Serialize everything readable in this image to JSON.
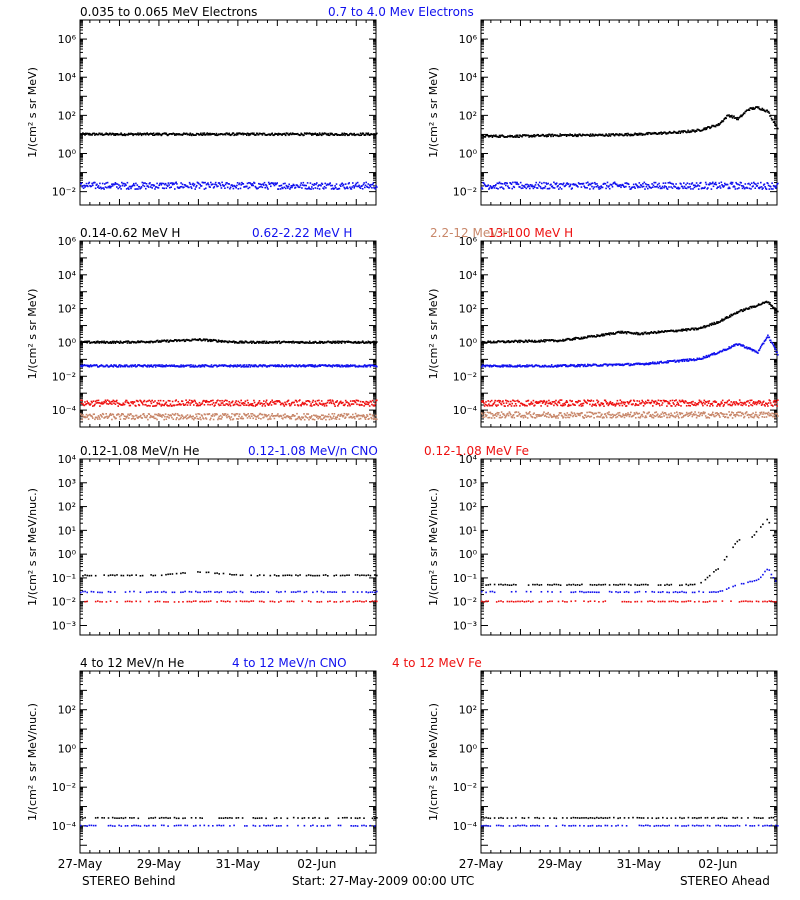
{
  "start_label": "Start: 27-May-2009 00:00 UTC",
  "left_footer": "STEREO Behind",
  "right_footer": "STEREO Ahead",
  "colors": {
    "black": "#000000",
    "blue": "#1010ee",
    "tan": "#c8876a",
    "red": "#ee1010"
  },
  "x_axis": {
    "range": [
      "2009-05-27T00:00",
      "2009-06-03T12:00"
    ],
    "tick_labels": [
      "27-May",
      "29-May",
      "31-May",
      "02-Jun"
    ],
    "tick_dates": [
      "2009-05-27",
      "2009-05-29",
      "2009-05-31",
      "2009-06-02"
    ]
  },
  "panel_groups": [
    {
      "legend": [
        {
          "text": "0.035 to 0.065 MeV Electrons",
          "color": "#000000"
        },
        {
          "text": "0.7 to 4.0 Mev Electrons",
          "color": "#1010ee"
        }
      ],
      "ylabel": "1/(cm² s sr MeV)",
      "yticks": [
        "10⁶",
        "10⁴",
        "10²",
        "10⁰",
        "10⁻²"
      ],
      "ytick_powers": [
        6,
        4,
        2,
        0,
        -2
      ]
    },
    {
      "legend": [
        {
          "text": "0.14-0.62 MeV H",
          "color": "#000000"
        },
        {
          "text": "0.62-2.22 MeV H",
          "color": "#1010ee"
        },
        {
          "text": "2.2-12 MeV H",
          "color": "#c8876a"
        },
        {
          "text": "13-100 MeV H",
          "color": "#ee1010"
        }
      ],
      "ylabel": "1/(cm² s sr MeV)",
      "yticks": [
        "10⁶",
        "10⁴",
        "10²",
        "10⁰",
        "10⁻²",
        "10⁻⁴"
      ],
      "ytick_powers": [
        6,
        4,
        2,
        0,
        -2,
        -4
      ]
    },
    {
      "legend": [
        {
          "text": "0.12-1.08 MeV/n He",
          "color": "#000000"
        },
        {
          "text": "0.12-1.08 MeV/n CNO",
          "color": "#1010ee"
        },
        {
          "text": "0.12-1.08 MeV Fe",
          "color": "#ee1010"
        }
      ],
      "ylabel": "1/(cm² s sr MeV/nuc.)",
      "yticks": [
        "10⁴",
        "10³",
        "10²",
        "10¹",
        "10⁰",
        "10⁻¹",
        "10⁻²",
        "10⁻³"
      ],
      "ytick_powers": [
        4,
        3,
        2,
        1,
        0,
        -1,
        -2,
        -3
      ]
    },
    {
      "legend": [
        {
          "text": "4 to 12 MeV/n He",
          "color": "#000000"
        },
        {
          "text": "4 to 12 MeV/n CNO",
          "color": "#1010ee"
        },
        {
          "text": "4 to 12 MeV Fe",
          "color": "#ee1010"
        }
      ],
      "ylabel": "1/(cm² s sr MeV/nuc.)",
      "yticks": [
        "10²",
        "10⁰",
        "10⁻²",
        "10⁻⁴"
      ],
      "ytick_powers": [
        2,
        0,
        -2,
        -4
      ]
    }
  ],
  "chart_data": [
    {
      "type": "scatter",
      "panel": "STEREO Behind electrons",
      "ylim_log10": [
        -2.7,
        7
      ],
      "y_scale": "log",
      "series": [
        {
          "name": "0.035 to 0.065 MeV Electrons",
          "color": "#000000",
          "x": [
            "2009-05-27",
            "2009-05-28",
            "2009-05-29",
            "2009-05-30",
            "2009-05-31",
            "2009-06-01",
            "2009-06-02",
            "2009-06-03",
            "2009-06-03T12:00"
          ],
          "log10_y": [
            1.0,
            1.0,
            1.0,
            1.0,
            1.0,
            1.0,
            1.0,
            1.0,
            1.0
          ]
        },
        {
          "name": "0.7 to 4.0 Mev Electrons",
          "color": "#1010ee",
          "x": [
            "2009-05-27",
            "2009-05-29",
            "2009-05-31",
            "2009-06-02",
            "2009-06-03T12:00"
          ],
          "log10_y": [
            -1.7,
            -1.7,
            -1.7,
            -1.7,
            -1.7
          ]
        }
      ]
    },
    {
      "type": "scatter",
      "panel": "STEREO Ahead electrons",
      "ylim_log10": [
        -2.7,
        7
      ],
      "y_scale": "log",
      "series": [
        {
          "name": "0.035 to 0.065 MeV Electrons",
          "color": "#000000",
          "x": [
            "2009-05-27",
            "2009-05-28",
            "2009-05-29",
            "2009-05-30",
            "2009-05-31",
            "2009-06-01",
            "2009-06-01T12:00",
            "2009-06-02",
            "2009-06-02T06:00",
            "2009-06-02T12:00",
            "2009-06-02T18:00",
            "2009-06-03",
            "2009-06-03T06:00",
            "2009-06-03T12:00"
          ],
          "log10_y": [
            0.9,
            0.9,
            0.95,
            0.95,
            1.0,
            1.1,
            1.2,
            1.5,
            2.0,
            1.8,
            2.3,
            2.4,
            2.2,
            1.3
          ]
        },
        {
          "name": "0.7 to 4.0 Mev Electrons",
          "color": "#1010ee",
          "x": [
            "2009-05-27",
            "2009-05-29",
            "2009-05-31",
            "2009-06-02",
            "2009-06-03T12:00"
          ],
          "log10_y": [
            -1.7,
            -1.7,
            -1.7,
            -1.7,
            -1.7
          ]
        }
      ]
    },
    {
      "type": "scatter",
      "panel": "STEREO Behind protons",
      "ylim_log10": [
        -5,
        6
      ],
      "y_scale": "log",
      "series": [
        {
          "name": "0.14-0.62 MeV H",
          "color": "#000000",
          "x": [
            "2009-05-27",
            "2009-05-28",
            "2009-05-29",
            "2009-05-30",
            "2009-05-31",
            "2009-06-01",
            "2009-06-02",
            "2009-06-03T12:00"
          ],
          "log10_y": [
            0.0,
            0.0,
            0.05,
            0.15,
            0.0,
            0.0,
            0.0,
            0.0
          ]
        },
        {
          "name": "0.62-2.22 MeV H",
          "color": "#1010ee",
          "x": [
            "2009-05-27",
            "2009-05-29",
            "2009-05-31",
            "2009-06-02",
            "2009-06-03T12:00"
          ],
          "log10_y": [
            -1.4,
            -1.4,
            -1.4,
            -1.4,
            -1.4
          ]
        },
        {
          "name": "2.2-12 MeV H",
          "color": "#c8876a",
          "x": [
            "2009-05-27",
            "2009-05-29",
            "2009-05-31",
            "2009-06-02",
            "2009-06-03T12:00"
          ],
          "log10_y": [
            -4.4,
            -4.4,
            -4.4,
            -4.4,
            -4.4
          ]
        },
        {
          "name": "13-100 MeV H",
          "color": "#ee1010",
          "x": [
            "2009-05-27",
            "2009-05-29",
            "2009-05-31",
            "2009-06-02",
            "2009-06-03T12:00"
          ],
          "log10_y": [
            -3.6,
            -3.6,
            -3.6,
            -3.6,
            -3.6
          ]
        }
      ]
    },
    {
      "type": "scatter",
      "panel": "STEREO Ahead protons",
      "ylim_log10": [
        -5,
        6
      ],
      "y_scale": "log",
      "series": [
        {
          "name": "0.14-0.62 MeV H",
          "color": "#000000",
          "x": [
            "2009-05-27",
            "2009-05-28",
            "2009-05-29",
            "2009-05-30",
            "2009-05-30T12:00",
            "2009-05-31",
            "2009-05-31T12:00",
            "2009-06-01",
            "2009-06-01T12:00",
            "2009-06-02",
            "2009-06-02T12:00",
            "2009-06-03",
            "2009-06-03T06:00",
            "2009-06-03T12:00"
          ],
          "log10_y": [
            0.0,
            0.05,
            0.1,
            0.4,
            0.6,
            0.5,
            0.6,
            0.7,
            0.8,
            1.2,
            1.8,
            2.2,
            2.4,
            1.8
          ]
        },
        {
          "name": "0.62-2.22 MeV H",
          "color": "#1010ee",
          "x": [
            "2009-05-27",
            "2009-05-29",
            "2009-05-31",
            "2009-06-01",
            "2009-06-01T12:00",
            "2009-06-02",
            "2009-06-02T12:00",
            "2009-06-03",
            "2009-06-03T06:00",
            "2009-06-03T12:00"
          ],
          "log10_y": [
            -1.4,
            -1.4,
            -1.3,
            -1.1,
            -1.0,
            -0.6,
            -0.1,
            -0.6,
            0.4,
            -0.7
          ]
        },
        {
          "name": "2.2-12 MeV H",
          "color": "#c8876a",
          "x": [
            "2009-05-27",
            "2009-05-29",
            "2009-05-31",
            "2009-06-02",
            "2009-06-03T12:00"
          ],
          "log10_y": [
            -4.3,
            -4.3,
            -4.3,
            -4.3,
            -4.3
          ]
        },
        {
          "name": "13-100 MeV H",
          "color": "#ee1010",
          "x": [
            "2009-05-27",
            "2009-05-29",
            "2009-05-31",
            "2009-06-02",
            "2009-06-03T12:00"
          ],
          "log10_y": [
            -3.6,
            -3.6,
            -3.6,
            -3.6,
            -3.6
          ]
        }
      ]
    },
    {
      "type": "scatter",
      "panel": "STEREO Behind low-energy ions",
      "ylim_log10": [
        -3.4,
        4
      ],
      "y_scale": "log",
      "series": [
        {
          "name": "0.12-1.08 MeV/n He",
          "color": "#000000",
          "x": [
            "2009-05-27",
            "2009-05-29",
            "2009-05-30",
            "2009-05-31",
            "2009-06-02",
            "2009-06-03T12:00"
          ],
          "log10_y": [
            -0.9,
            -0.9,
            -0.75,
            -0.9,
            -0.9,
            -0.9
          ]
        },
        {
          "name": "0.12-1.08 MeV/n CNO",
          "color": "#1010ee",
          "x": [
            "2009-05-27",
            "2009-05-29",
            "2009-05-31",
            "2009-06-02",
            "2009-06-03T12:00"
          ],
          "log10_y": [
            -1.6,
            -1.6,
            -1.6,
            -1.6,
            -1.6
          ]
        },
        {
          "name": "0.12-1.08 MeV Fe",
          "color": "#ee1010",
          "x": [
            "2009-05-27",
            "2009-05-29",
            "2009-05-31",
            "2009-06-02",
            "2009-06-03T12:00"
          ],
          "log10_y": [
            -2.0,
            -2.0,
            -2.0,
            -2.0,
            -2.0
          ]
        }
      ]
    },
    {
      "type": "scatter",
      "panel": "STEREO Ahead low-energy ions",
      "ylim_log10": [
        -3.4,
        4
      ],
      "y_scale": "log",
      "series": [
        {
          "name": "0.12-1.08 MeV/n He",
          "color": "#000000",
          "x": [
            "2009-05-27",
            "2009-05-29",
            "2009-05-31",
            "2009-06-01T12:00",
            "2009-06-02",
            "2009-06-02T06:00",
            "2009-06-02T12:00",
            "2009-06-02T18:00",
            "2009-06-03",
            "2009-06-03T06:00",
            "2009-06-03T12:00"
          ],
          "log10_y": [
            -1.3,
            -1.3,
            -1.3,
            -1.3,
            -0.6,
            0.0,
            0.6,
            0.5,
            1.0,
            1.5,
            0.2
          ]
        },
        {
          "name": "0.12-1.08 MeV/n CNO",
          "color": "#1010ee",
          "x": [
            "2009-05-27",
            "2009-05-31",
            "2009-06-02",
            "2009-06-02T12:00",
            "2009-06-03",
            "2009-06-03T06:00",
            "2009-06-03T12:00"
          ],
          "log10_y": [
            -1.6,
            -1.6,
            -1.6,
            -1.3,
            -1.1,
            -0.6,
            -1.3
          ]
        },
        {
          "name": "0.12-1.08 MeV Fe",
          "color": "#ee1010",
          "x": [
            "2009-05-27",
            "2009-05-29",
            "2009-05-31",
            "2009-06-02",
            "2009-06-03T12:00"
          ],
          "log10_y": [
            -2.0,
            -2.0,
            -2.0,
            -2.0,
            -2.0
          ]
        }
      ]
    },
    {
      "type": "scatter",
      "panel": "STEREO Behind high-energy ions",
      "ylim_log10": [
        -5.4,
        4
      ],
      "y_scale": "log",
      "series": [
        {
          "name": "4 to 12 MeV/n He",
          "color": "#000000",
          "x": [
            "2009-05-27",
            "2009-05-29",
            "2009-05-31",
            "2009-06-02",
            "2009-06-03T12:00"
          ],
          "log10_y": [
            -3.6,
            -3.6,
            -3.6,
            -3.6,
            -3.6
          ]
        },
        {
          "name": "4 to 12 MeV/n CNO",
          "color": "#1010ee",
          "x": [
            "2009-05-27",
            "2009-05-29",
            "2009-05-31",
            "2009-06-02",
            "2009-06-03T12:00"
          ],
          "log10_y": [
            -4.0,
            -4.0,
            -4.0,
            -4.0,
            -4.0
          ]
        }
      ]
    },
    {
      "type": "scatter",
      "panel": "STEREO Ahead high-energy ions",
      "ylim_log10": [
        -5.4,
        4
      ],
      "y_scale": "log",
      "series": [
        {
          "name": "4 to 12 MeV/n He",
          "color": "#000000",
          "x": [
            "2009-05-27",
            "2009-05-29",
            "2009-05-31",
            "2009-06-02",
            "2009-06-03T12:00"
          ],
          "log10_y": [
            -3.6,
            -3.6,
            -3.6,
            -3.6,
            -3.6
          ]
        },
        {
          "name": "4 to 12 MeV/n CNO",
          "color": "#1010ee",
          "x": [
            "2009-05-27",
            "2009-05-29",
            "2009-05-31",
            "2009-06-02",
            "2009-06-03T12:00"
          ],
          "log10_y": [
            -4.0,
            -4.0,
            -4.0,
            -4.0,
            -4.0
          ]
        }
      ]
    }
  ]
}
